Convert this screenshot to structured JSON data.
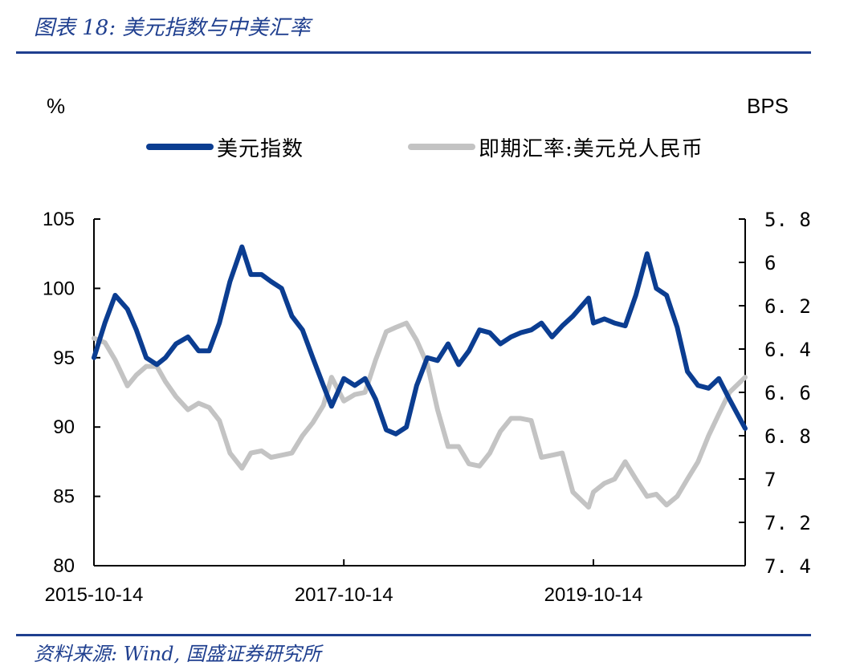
{
  "header": {
    "title": "图表 18: 美元指数与中美汇率"
  },
  "footer": {
    "source": "资料来源: Wind, 国盛证券研究所"
  },
  "colors": {
    "accent": "#1f3f8f",
    "dxy": "#0b3d91",
    "cny": "#c3c3c3"
  },
  "chart_data": {
    "type": "line",
    "title": "",
    "y_unit_left": "%",
    "y_unit_right": "BPS",
    "legend": [
      "美元指数",
      "即期汇率:美元兑人民币"
    ],
    "legend_position": "top",
    "x_tick_labels": [
      "2015-10-14",
      "2017-10-14",
      "2019-10-14"
    ],
    "x_range": [
      "2015-10-14",
      "2020-12-31"
    ],
    "ylim_left": [
      80,
      105
    ],
    "ylim_right": [
      5.8,
      7.4
    ],
    "ylim_right_inverted": true,
    "y_ticks_left": [
      "105",
      "100",
      "95",
      "90",
      "85",
      "80"
    ],
    "y_ticks_right": [
      "5.8",
      "6",
      "6.2",
      "6.4",
      "6.6",
      "6.8",
      "7",
      "7.2",
      "7.4"
    ],
    "grid": false,
    "series": [
      {
        "name": "美元指数",
        "axis": "left",
        "x": [
          "2015-10-14",
          "2015-11-15",
          "2015-12-15",
          "2016-01-20",
          "2016-02-15",
          "2016-03-15",
          "2016-04-15",
          "2016-05-10",
          "2016-06-10",
          "2016-07-15",
          "2016-08-15",
          "2016-09-15",
          "2016-10-15",
          "2016-11-15",
          "2016-12-20",
          "2017-01-15",
          "2017-02-15",
          "2017-03-15",
          "2017-04-15",
          "2017-05-15",
          "2017-06-15",
          "2017-07-15",
          "2017-08-15",
          "2017-09-08",
          "2017-10-14",
          "2017-11-15",
          "2017-12-15",
          "2018-01-15",
          "2018-02-15",
          "2018-03-15",
          "2018-04-15",
          "2018-05-15",
          "2018-06-15",
          "2018-07-15",
          "2018-08-15",
          "2018-09-15",
          "2018-10-15",
          "2018-11-15",
          "2018-12-15",
          "2019-01-15",
          "2019-02-15",
          "2019-03-15",
          "2019-04-15",
          "2019-05-15",
          "2019-06-15",
          "2019-07-15",
          "2019-08-15",
          "2019-09-30",
          "2019-10-14",
          "2019-11-15",
          "2019-12-15",
          "2020-01-15",
          "2020-02-15",
          "2020-03-19",
          "2020-04-15",
          "2020-05-15",
          "2020-06-15",
          "2020-07-15",
          "2020-08-15",
          "2020-09-15",
          "2020-10-15",
          "2020-11-15",
          "2020-12-31"
        ],
        "values": [
          95,
          97.5,
          99.5,
          98.5,
          97,
          95,
          94.5,
          95,
          96,
          96.5,
          95.5,
          95.5,
          97.5,
          100.5,
          103,
          101,
          101,
          100.5,
          100,
          98,
          97,
          95,
          93,
          91.5,
          93.5,
          93,
          93.5,
          92,
          89.8,
          89.5,
          90,
          93,
          95,
          94.8,
          96,
          94.5,
          95.5,
          97,
          96.8,
          96,
          96.5,
          96.8,
          97,
          97.5,
          96.5,
          97.3,
          98,
          99.3,
          97.5,
          97.8,
          97.5,
          97.3,
          99.5,
          102.5,
          100,
          99.5,
          97.2,
          94,
          93,
          92.8,
          93.5,
          92,
          89.9
        ]
      },
      {
        "name": "即期汇率:美元兑人民币",
        "axis": "right",
        "x": [
          "2015-10-14",
          "2015-11-15",
          "2015-12-15",
          "2016-01-20",
          "2016-02-15",
          "2016-03-15",
          "2016-04-15",
          "2016-05-10",
          "2016-06-10",
          "2016-07-15",
          "2016-08-15",
          "2016-09-15",
          "2016-10-15",
          "2016-11-15",
          "2016-12-20",
          "2017-01-15",
          "2017-02-15",
          "2017-03-15",
          "2017-04-15",
          "2017-05-15",
          "2017-06-15",
          "2017-07-15",
          "2017-08-15",
          "2017-09-08",
          "2017-10-14",
          "2017-11-15",
          "2017-12-15",
          "2018-01-15",
          "2018-02-15",
          "2018-03-15",
          "2018-04-15",
          "2018-05-15",
          "2018-06-15",
          "2018-07-15",
          "2018-08-15",
          "2018-09-15",
          "2018-10-15",
          "2018-11-15",
          "2018-12-15",
          "2019-01-15",
          "2019-02-15",
          "2019-03-15",
          "2019-04-15",
          "2019-05-15",
          "2019-06-15",
          "2019-07-15",
          "2019-08-15",
          "2019-09-30",
          "2019-10-14",
          "2019-11-15",
          "2019-12-15",
          "2020-01-15",
          "2020-02-15",
          "2020-03-19",
          "2020-04-15",
          "2020-05-15",
          "2020-06-15",
          "2020-07-15",
          "2020-08-15",
          "2020-09-15",
          "2020-10-15",
          "2020-11-15",
          "2020-12-31"
        ],
        "values": [
          6.35,
          6.37,
          6.45,
          6.57,
          6.52,
          6.48,
          6.48,
          6.55,
          6.62,
          6.68,
          6.65,
          6.67,
          6.73,
          6.88,
          6.95,
          6.88,
          6.87,
          6.9,
          6.89,
          6.88,
          6.8,
          6.74,
          6.66,
          6.53,
          6.64,
          6.61,
          6.6,
          6.45,
          6.32,
          6.3,
          6.28,
          6.36,
          6.47,
          6.68,
          6.85,
          6.85,
          6.93,
          6.94,
          6.88,
          6.78,
          6.72,
          6.72,
          6.73,
          6.9,
          6.89,
          6.88,
          7.06,
          7.13,
          7.06,
          7.02,
          7.0,
          6.92,
          7.0,
          7.08,
          7.07,
          7.12,
          7.08,
          7.0,
          6.92,
          6.8,
          6.7,
          6.6,
          6.53
        ]
      }
    ]
  }
}
